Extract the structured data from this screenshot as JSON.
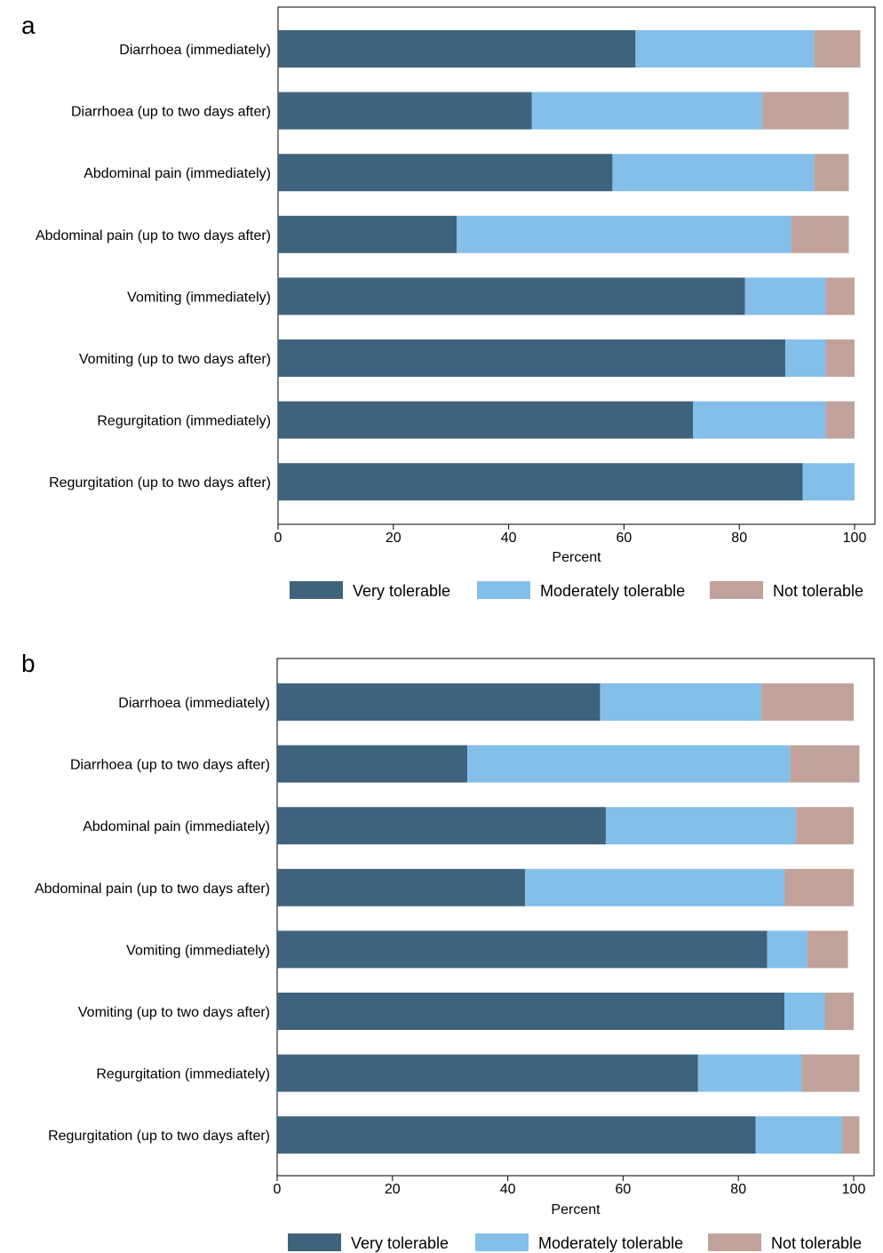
{
  "colors": {
    "very_tolerable": "#3f637d",
    "moderately_tolerable": "#83bfe9",
    "not_tolerable": "#c0a29a"
  },
  "legend": {
    "very_tolerable": "Very tolerable",
    "moderately_tolerable": "Moderately tolerable",
    "not_tolerable": "Not tolerable"
  },
  "chart_data": [
    {
      "type": "bar",
      "orientation": "horizontal",
      "stacked": true,
      "panel": "a",
      "xlabel": "Percent",
      "xlim": [
        0,
        103
      ],
      "xticks": [
        0,
        20,
        40,
        60,
        80,
        100
      ],
      "legend_position": "bottom",
      "categories": [
        "Diarrhoea (immediately)",
        "Diarrhoea (up to two days after)",
        "Abdominal pain (immediately)",
        "Abdominal pain (up to two days after)",
        "Vomiting (immediately)",
        "Vomiting (up to two days after)",
        "Regurgitation (immediately)",
        "Regurgitation (up to two days after)"
      ],
      "series": [
        {
          "name": "Very tolerable",
          "values": [
            62,
            44,
            58,
            31,
            81,
            88,
            72,
            91
          ]
        },
        {
          "name": "Moderately tolerable",
          "values": [
            31,
            40,
            35,
            58,
            14,
            7,
            23,
            9
          ]
        },
        {
          "name": "Not tolerable",
          "values": [
            8,
            15,
            6,
            10,
            5,
            5,
            5,
            0
          ]
        }
      ]
    },
    {
      "type": "bar",
      "orientation": "horizontal",
      "stacked": true,
      "panel": "b",
      "xlabel": "Percent",
      "xlim": [
        0,
        103
      ],
      "xticks": [
        0,
        20,
        40,
        60,
        80,
        100
      ],
      "legend_position": "bottom",
      "categories": [
        "Diarrhoea (immediately)",
        "Diarrhoea (up to two days after)",
        "Abdominal pain (immediately)",
        "Abdominal pain (up to two days after)",
        "Vomiting (immediately)",
        "Vomiting (up to two days after)",
        "Regurgitation (immediately)",
        "Regurgitation (up to two days after)"
      ],
      "series": [
        {
          "name": "Very tolerable",
          "values": [
            56,
            33,
            57,
            43,
            85,
            88,
            73,
            83
          ]
        },
        {
          "name": "Moderately tolerable",
          "values": [
            28,
            56,
            33,
            45,
            7,
            7,
            18,
            15
          ]
        },
        {
          "name": "Not tolerable",
          "values": [
            16,
            12,
            10,
            12,
            7,
            5,
            10,
            3
          ]
        }
      ]
    }
  ]
}
